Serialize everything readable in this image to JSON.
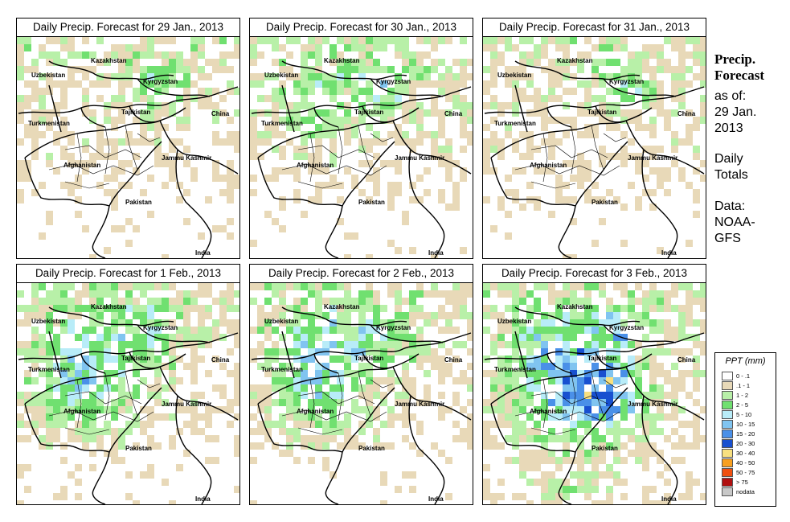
{
  "panels": [
    {
      "title": "Daily Precip. Forecast for  29 Jan., 2013",
      "intensity": 0
    },
    {
      "title": "Daily Precip. Forecast for  30 Jan., 2013",
      "intensity": 1
    },
    {
      "title": "Daily Precip. Forecast for  31 Jan., 2013",
      "intensity": 0
    },
    {
      "title": "Daily Precip. Forecast for  1 Feb., 2013",
      "intensity": 2
    },
    {
      "title": "Daily Precip. Forecast for  2 Feb., 2013",
      "intensity": 2
    },
    {
      "title": "Daily Precip. Forecast for  3 Feb., 2013",
      "intensity": 3
    }
  ],
  "map_labels": {
    "kazakhstan": "Kazakhstan",
    "uzbekistan": "Uzbekistan",
    "kyrgyzstan": "Kyrgyzstan",
    "tajikistan": "Tajikistan",
    "turkmenistan": "Turkmenistan",
    "china": "China",
    "afghanistan": "Afghanistan",
    "jammu": "Jammu Kashmir",
    "pakistan": "Pakistan",
    "india": "India"
  },
  "side": {
    "title_line1": "Precip.",
    "title_line2": "Forecast",
    "asof": "as of:",
    "date_line1": "29 Jan.",
    "date_line2": "2013",
    "daily_line1": "Daily",
    "daily_line2": "Totals",
    "data_line1": "Data:",
    "data_line2": "NOAA-",
    "data_line3": "GFS"
  },
  "legend": {
    "title": "PPT (mm)",
    "items": [
      {
        "label": "0 - .1",
        "color": "#ffffff"
      },
      {
        "label": ".1 - 1",
        "color": "#e8d9b8"
      },
      {
        "label": "1 - 2",
        "color": "#b8f0a8"
      },
      {
        "label": "2 - 5",
        "color": "#70e070"
      },
      {
        "label": "5 - 10",
        "color": "#b8ecf8"
      },
      {
        "label": "10 - 15",
        "color": "#80c4f0"
      },
      {
        "label": "15 - 20",
        "color": "#4a90e8"
      },
      {
        "label": "20 - 30",
        "color": "#1850d0"
      },
      {
        "label": "30 - 40",
        "color": "#f8e080"
      },
      {
        "label": "40 - 50",
        "color": "#f8a020"
      },
      {
        "label": "50 - 75",
        "color": "#f05010"
      },
      {
        "label": "> 75",
        "color": "#b01010"
      },
      {
        "label": "nodata",
        "color": "#c8c8c8"
      }
    ]
  }
}
